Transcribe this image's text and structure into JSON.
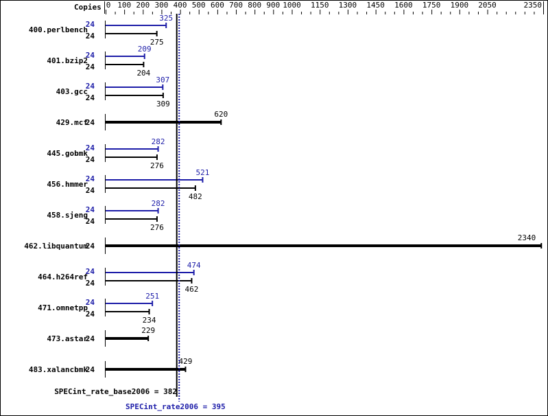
{
  "chart_data": {
    "type": "bar",
    "orientation": "horizontal",
    "xlabel": "Copies",
    "xlim": [
      0,
      2350
    ],
    "xticks": [
      0,
      100,
      200,
      300,
      400,
      500,
      600,
      700,
      800,
      900,
      1000,
      1150,
      1300,
      1450,
      1600,
      1750,
      1900,
      2050,
      2350
    ],
    "colors": {
      "base": "#000000",
      "peak": "#1c1ca8"
    },
    "benchmarks": [
      {
        "name": "400.perlbench",
        "copies": "24",
        "peak_copies": "24",
        "base": 275,
        "peak": 325
      },
      {
        "name": "401.bzip2",
        "copies": "24",
        "peak_copies": "24",
        "base": 204,
        "peak": 209
      },
      {
        "name": "403.gcc",
        "copies": "24",
        "peak_copies": "24",
        "base": 309,
        "peak": 307
      },
      {
        "name": "429.mcf",
        "copies": "24",
        "peak_copies": null,
        "base": 620,
        "peak": null
      },
      {
        "name": "445.gobmk",
        "copies": "24",
        "peak_copies": "24",
        "base": 276,
        "peak": 282
      },
      {
        "name": "456.hmmer",
        "copies": "24",
        "peak_copies": "24",
        "base": 482,
        "peak": 521
      },
      {
        "name": "458.sjeng",
        "copies": "24",
        "peak_copies": "24",
        "base": 276,
        "peak": 282
      },
      {
        "name": "462.libquantum",
        "copies": "24",
        "peak_copies": null,
        "base": 2340,
        "peak": null
      },
      {
        "name": "464.h264ref",
        "copies": "24",
        "peak_copies": "24",
        "base": 462,
        "peak": 474
      },
      {
        "name": "471.omnetpp",
        "copies": "24",
        "peak_copies": "24",
        "base": 234,
        "peak": 251
      },
      {
        "name": "473.astar",
        "copies": "24",
        "peak_copies": null,
        "base": 229,
        "peak": null
      },
      {
        "name": "483.xalancbmk",
        "copies": "24",
        "peak_copies": null,
        "base": 429,
        "peak": null
      }
    ],
    "summary": {
      "base_label": "SPECint_rate_base2006 = 382",
      "base_value": 382,
      "peak_label": "SPECint_rate2006 = 395",
      "peak_value": 395
    }
  }
}
